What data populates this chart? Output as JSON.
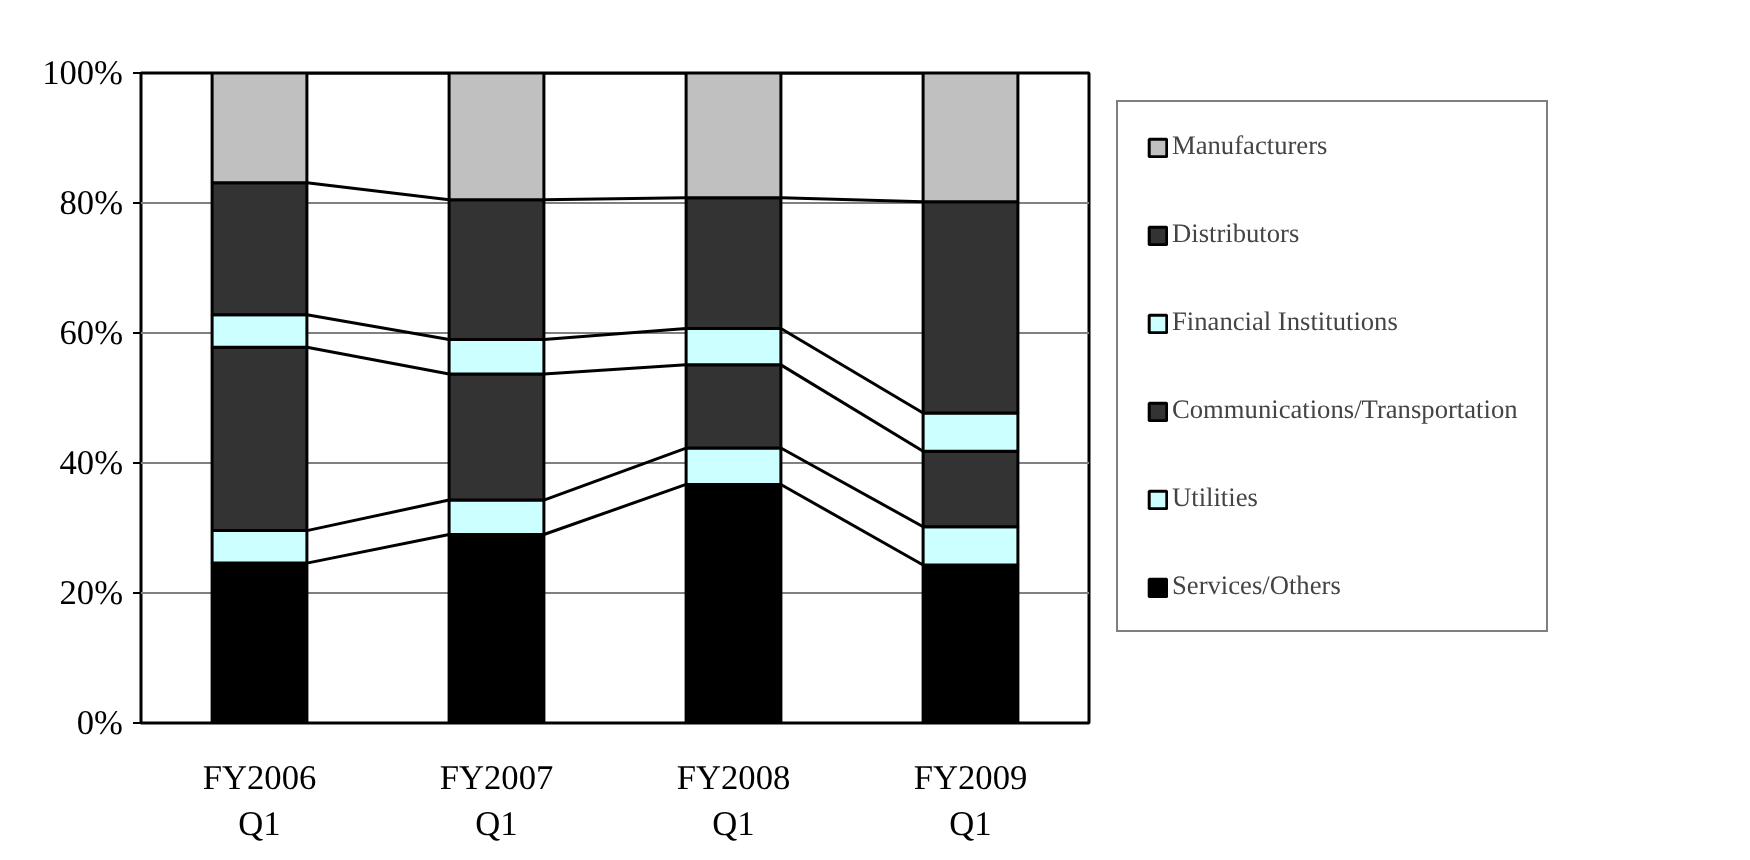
{
  "chart_data": {
    "type": "bar",
    "stacked": true,
    "categories": [
      "FY2006\nQ1",
      "FY2007\nQ1",
      "FY2008\nQ1",
      "FY2009\nQ1"
    ],
    "series": [
      {
        "name": "Services/Others",
        "color": "#000000",
        "values": [
          24.6,
          29.0,
          36.7,
          24.3
        ]
      },
      {
        "name": "Utilities",
        "color": "#ccffff",
        "values": [
          5.0,
          5.3,
          5.6,
          5.9
        ]
      },
      {
        "name": "Communications/Transportation",
        "color": "#333333",
        "values": [
          28.2,
          19.4,
          12.8,
          11.6
        ]
      },
      {
        "name": "Financial Institutions",
        "color": "#ccffff",
        "values": [
          5.0,
          5.3,
          5.6,
          5.9
        ]
      },
      {
        "name": "Distributors",
        "color": "#333333",
        "values": [
          20.3,
          21.5,
          20.1,
          32.5
        ]
      },
      {
        "name": "Manufacturers",
        "color": "#c0c0c0",
        "values": [
          16.9,
          19.5,
          19.2,
          19.8
        ]
      }
    ],
    "ylim": [
      0,
      100
    ],
    "yticks": [
      {
        "value": 0,
        "label": "0%"
      },
      {
        "value": 20,
        "label": "20%"
      },
      {
        "value": 40,
        "label": "40%"
      },
      {
        "value": 60,
        "label": "60%"
      },
      {
        "value": 80,
        "label": "80%"
      },
      {
        "value": 100,
        "label": "100%"
      }
    ],
    "grid": "y",
    "legend": "right"
  }
}
